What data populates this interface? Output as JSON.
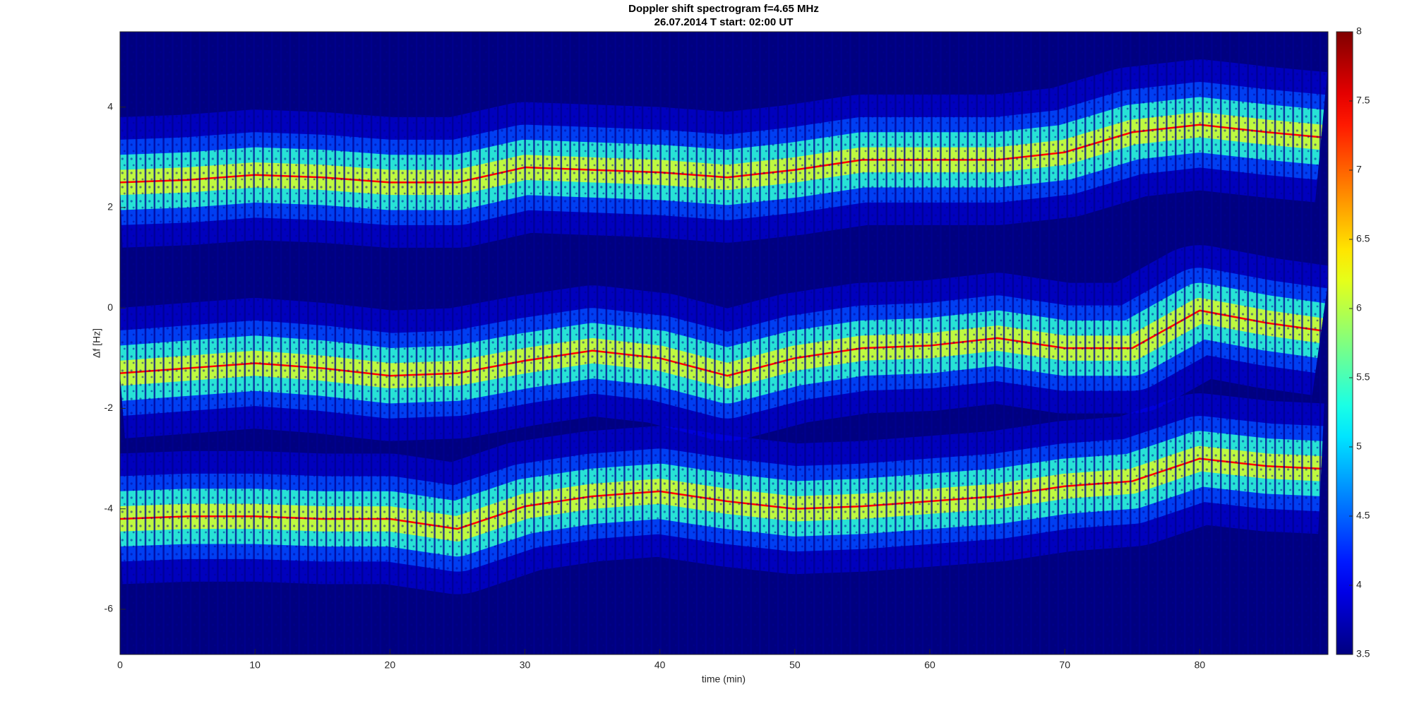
{
  "chart_data": {
    "type": "spectrogram",
    "title": "Doppler shift spectrogram f=4.65 MHz",
    "subtitle": "26.07.2014   T start: 02:00 UT",
    "x_label": "time (min)",
    "y_label": "Δf [Hz]",
    "xlim": [
      0,
      89.5
    ],
    "ylim": [
      -6.9,
      5.5
    ],
    "xticks": [
      0,
      10,
      20,
      30,
      40,
      50,
      60,
      70,
      80
    ],
    "yticks": [
      -6,
      -4,
      -2,
      0,
      2,
      4
    ],
    "colormap": "jet",
    "clim": [
      3.5,
      8
    ],
    "cticks": [
      3.5,
      4,
      4.5,
      5,
      5.5,
      6,
      6.5,
      7,
      7.5,
      8
    ],
    "x": [
      0,
      5,
      10,
      15,
      20,
      25,
      30,
      35,
      40,
      45,
      50,
      55,
      60,
      65,
      70,
      75,
      80,
      85,
      89
    ],
    "series": [
      {
        "color": "#ff0000",
        "values": [
          2.5,
          2.55,
          2.65,
          2.6,
          2.5,
          2.5,
          2.8,
          2.75,
          2.7,
          2.6,
          2.75,
          2.95,
          2.95,
          2.95,
          3.1,
          3.5,
          3.65,
          3.5,
          3.4
        ]
      },
      {
        "color": "#ff0000",
        "values": [
          -1.3,
          -1.2,
          -1.1,
          -1.2,
          -1.35,
          -1.3,
          -1.05,
          -0.85,
          -1.0,
          -1.35,
          -1.0,
          -0.8,
          -0.75,
          -0.6,
          -0.8,
          -0.8,
          -0.05,
          -0.3,
          -0.45
        ]
      },
      {
        "color": "#ff0000",
        "values": [
          -4.2,
          -4.15,
          -4.15,
          -4.2,
          -4.2,
          -4.4,
          -3.95,
          -3.75,
          -3.65,
          -3.85,
          -4.0,
          -3.95,
          -3.85,
          -3.75,
          -3.55,
          -3.45,
          -3.0,
          -3.15,
          -3.2
        ]
      }
    ]
  }
}
